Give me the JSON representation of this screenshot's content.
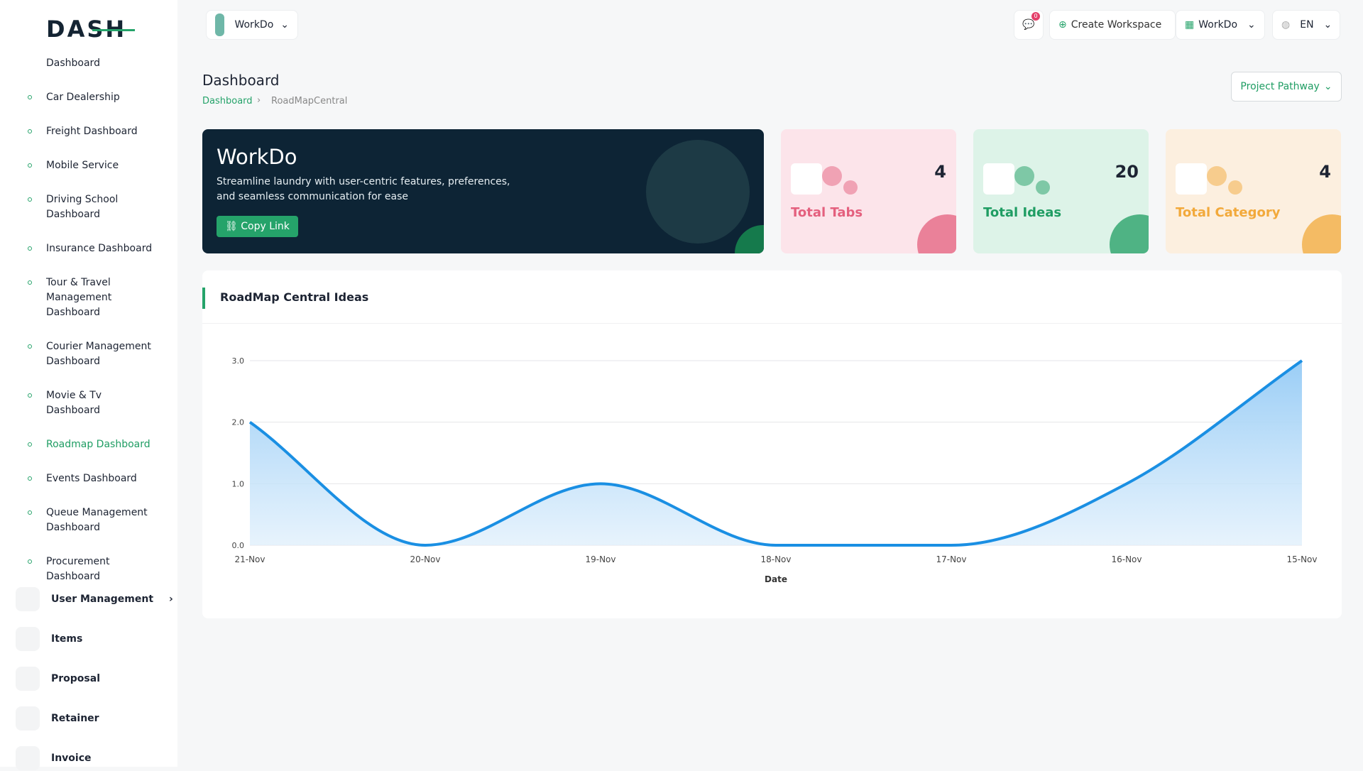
{
  "logo": "DASH",
  "header": {
    "workspace": "WorkDo",
    "notifications": "0",
    "create": "Create Workspace",
    "account": "WorkDo",
    "language": "EN"
  },
  "sidebar": {
    "items": [
      "Dashboard",
      "Car Dealership",
      "Freight Dashboard",
      "Mobile Service",
      "Driving School Dashboard",
      "Insurance Dashboard",
      "Tour & Travel Management Dashboard",
      "Courier Management Dashboard",
      "Movie & Tv Dashboard",
      "Roadmap Dashboard",
      "Events Dashboard",
      "Queue Management Dashboard",
      "Procurement Dashboard"
    ],
    "active": "Roadmap Dashboard",
    "menu": [
      "User Management",
      "Items",
      "Proposal",
      "Retainer",
      "Invoice"
    ]
  },
  "page": {
    "title": "Dashboard",
    "breadcrumb": [
      "Dashboard",
      "RoadMapCentral"
    ],
    "filter": "Project Pathway"
  },
  "banner": {
    "title": "WorkDo",
    "text": "Streamline laundry with user-centric features, preferences, and seamless communication for ease",
    "button": "Copy Link"
  },
  "cards": [
    {
      "label": "Total Tabs",
      "value": 4,
      "color": "#e4607e",
      "bg": "#fce4ea"
    },
    {
      "label": "Total Ideas",
      "value": 20,
      "color": "#1f9d63",
      "bg": "#ddf3e8"
    },
    {
      "label": "Total Category",
      "value": 4,
      "color": "#f2a93b",
      "bg": "#fcefdf"
    }
  ],
  "chart_data": {
    "type": "area",
    "title": "RoadMap Central Ideas",
    "x_label": "Date",
    "color": "#1a8fe3",
    "categories": [
      "21-Nov",
      "20-Nov",
      "19-Nov",
      "18-Nov",
      "17-Nov",
      "16-Nov",
      "15-Nov"
    ],
    "values": [
      2,
      0,
      1,
      0,
      0,
      1,
      3
    ],
    "ylim": [
      0,
      3
    ],
    "yticks": [
      {
        "value": 0,
        "label": "0.0"
      },
      {
        "value": 1,
        "label": "1.0"
      },
      {
        "value": 2,
        "label": "2.0"
      },
      {
        "value": 3,
        "label": "3.0"
      }
    ],
    "grid": true
  }
}
